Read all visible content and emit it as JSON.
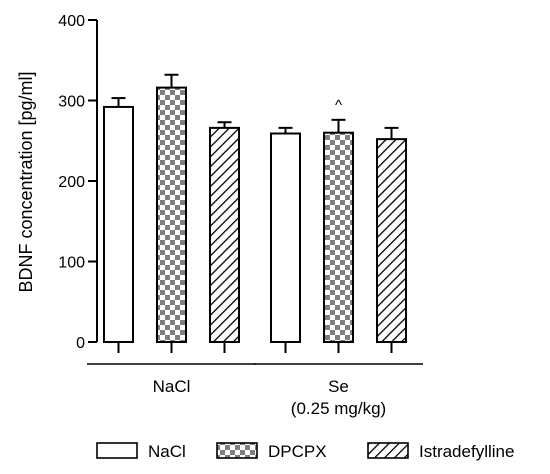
{
  "chart_data": {
    "type": "bar",
    "ylabel": "BDNF concentration [pg/ml]",
    "ylim": [
      0,
      400
    ],
    "yticks": [
      0,
      100,
      200,
      300,
      400
    ],
    "groups": [
      {
        "label_lines": [
          "NaCl"
        ]
      },
      {
        "label_lines": [
          "Se",
          "(0.25 mg/kg)"
        ]
      }
    ],
    "series": [
      {
        "name": "NaCl",
        "pattern": "white",
        "values": [
          292,
          259
        ],
        "errors": [
          11,
          7
        ]
      },
      {
        "name": "DPCPX",
        "pattern": "checker",
        "values": [
          316,
          260
        ],
        "errors": [
          16,
          16
        ]
      },
      {
        "name": "Istradefylline",
        "pattern": "hatch",
        "values": [
          266,
          252
        ],
        "errors": [
          7,
          14
        ]
      }
    ],
    "annotations": [
      {
        "text": "^",
        "group": 1,
        "series": 1
      }
    ],
    "legend_position": "bottom",
    "grid": false,
    "colors": {
      "stroke": "#000000",
      "fill": "#ffffff",
      "pattern_dark": "#7f7f7f"
    }
  }
}
